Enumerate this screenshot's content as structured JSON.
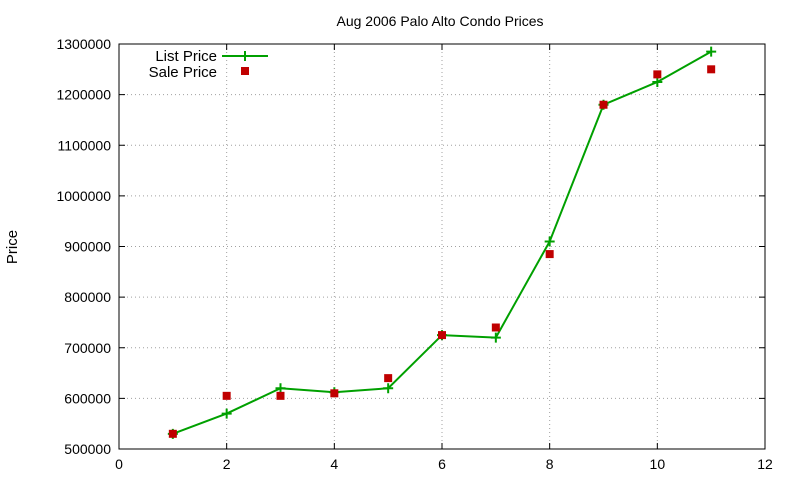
{
  "chart_data": {
    "type": "line",
    "title": "Aug 2006 Palo Alto Condo Prices",
    "xlabel": "",
    "ylabel": "Price",
    "xlim": [
      0,
      12
    ],
    "ylim": [
      500000,
      1300000
    ],
    "x_ticks": [
      0,
      2,
      4,
      6,
      8,
      10,
      12
    ],
    "y_ticks": [
      500000,
      600000,
      700000,
      800000,
      900000,
      1000000,
      1100000,
      1200000,
      1300000
    ],
    "grid": true,
    "legend_position": "top-left",
    "series": [
      {
        "name": "List Price",
        "style": "line-with-plus-markers",
        "color": "#00a000",
        "x": [
          1,
          2,
          3,
          4,
          5,
          6,
          7,
          8,
          9,
          10,
          11
        ],
        "y": [
          530000,
          570000,
          620000,
          612000,
          620000,
          725000,
          720000,
          910000,
          1180000,
          1225000,
          1285000
        ]
      },
      {
        "name": "Sale Price",
        "style": "square-markers",
        "color": "#c00000",
        "x": [
          1,
          2,
          3,
          4,
          5,
          6,
          7,
          8,
          9,
          10,
          11
        ],
        "y": [
          530000,
          605000,
          605000,
          610000,
          640000,
          725000,
          740000,
          885000,
          1180000,
          1240000,
          1250000
        ]
      }
    ]
  }
}
